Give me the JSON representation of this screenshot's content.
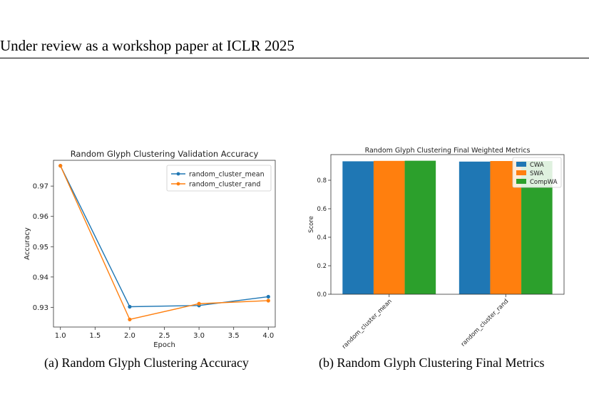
{
  "page": {
    "header": "Under review as a workshop paper at ICLR 2025"
  },
  "figures": {
    "a": {
      "caption": "(a)  Random Glyph Clustering Accuracy"
    },
    "b": {
      "caption": "(b)  Random Glyph Clustering Final Metrics"
    }
  },
  "chart_data": [
    {
      "type": "line",
      "title": "Random Glyph Clustering Validation Accuracy",
      "xlabel": "Epoch",
      "ylabel": "Accuracy",
      "x": [
        1.0,
        2.0,
        3.0,
        4.0
      ],
      "xlim": [
        0.9,
        4.1
      ],
      "ylim": [
        0.9235,
        0.9785
      ],
      "xticks": [
        "1.0",
        "1.5",
        "2.0",
        "2.5",
        "3.0",
        "3.5",
        "4.0"
      ],
      "yticks": [
        "0.93",
        "0.94",
        "0.95",
        "0.96",
        "0.97"
      ],
      "legend": "upper-right",
      "series": [
        {
          "name": "random_cluster_mean",
          "color": "#1f77b4",
          "values": [
            0.9767,
            0.9302,
            0.9306,
            0.9335
          ]
        },
        {
          "name": "random_cluster_rand",
          "color": "#ff7f0e",
          "values": [
            0.9767,
            0.926,
            0.9312,
            0.9322
          ]
        }
      ]
    },
    {
      "type": "bar",
      "title": "Random Glyph Clustering Final Weighted Metrics",
      "xlabel": "",
      "ylabel": "Score",
      "categories": [
        "random_cluster_mean",
        "random_cluster_rand"
      ],
      "ylim": [
        0,
        0.98
      ],
      "yticks": [
        "0.0",
        "0.2",
        "0.4",
        "0.6",
        "0.8"
      ],
      "legend": "upper-right",
      "series": [
        {
          "name": "CWA",
          "color": "#1f77b4",
          "values": [
            0.933,
            0.931
          ]
        },
        {
          "name": "SWA",
          "color": "#ff7f0e",
          "values": [
            0.936,
            0.935
          ]
        },
        {
          "name": "CompWA",
          "color": "#2ca02c",
          "values": [
            0.937,
            0.935
          ]
        }
      ]
    }
  ]
}
